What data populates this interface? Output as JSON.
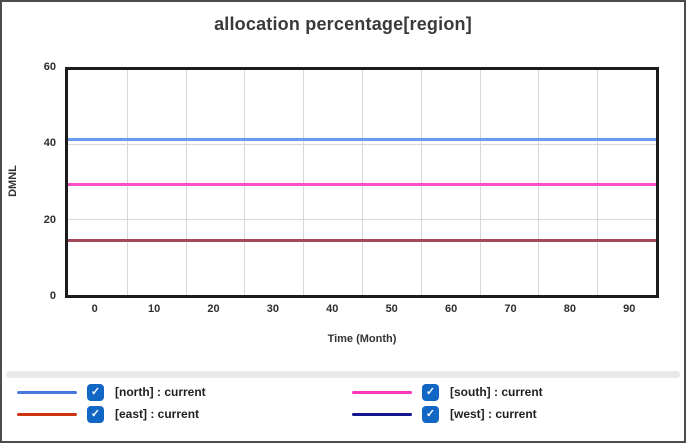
{
  "chart": {
    "title": "allocation percentage[region]",
    "y_axis_label": "DMNL",
    "x_axis_label": "Time (Month)",
    "y_ticks": [
      "60",
      "40",
      "20",
      "0"
    ],
    "x_ticks": [
      "0",
      "10",
      "20",
      "30",
      "40",
      "50",
      "60",
      "70",
      "80",
      "90"
    ]
  },
  "chart_data": {
    "type": "line",
    "title": "allocation percentage[region]",
    "xlabel": "Time (Month)",
    "ylabel": "DMNL",
    "x": [
      0,
      10,
      20,
      30,
      40,
      50,
      60,
      70,
      80,
      90
    ],
    "ylim": [
      0,
      60
    ],
    "grid": true,
    "legend_position": "bottom",
    "x_axis_style": "category-offset (labels centered between boundary gridlines)",
    "series": [
      {
        "name": "[north] : current",
        "region": "north",
        "color": "#4678dc",
        "plot_color": "#6b9bee",
        "value": 41.5,
        "values": [
          41.5,
          41.5,
          41.5,
          41.5,
          41.5,
          41.5,
          41.5,
          41.5,
          41.5,
          41.5
        ],
        "checked": true
      },
      {
        "name": "[south] : current",
        "region": "south",
        "color": "#ff36bc",
        "plot_color": "#f94fc3",
        "value": 29.5,
        "values": [
          29.5,
          29.5,
          29.5,
          29.5,
          29.5,
          29.5,
          29.5,
          29.5,
          29.5,
          29.5
        ],
        "checked": true
      },
      {
        "name": "[east] : current",
        "region": "east",
        "color": "#cc3311",
        "plot_color": "#a3495a",
        "value": 14.5,
        "values": [
          14.5,
          14.5,
          14.5,
          14.5,
          14.5,
          14.5,
          14.5,
          14.5,
          14.5,
          14.5
        ],
        "checked": true
      },
      {
        "name": "[west] : current",
        "region": "west",
        "color": "#14148c",
        "plot_color": "#14148c",
        "value": 14.5,
        "values": [
          14.5,
          14.5,
          14.5,
          14.5,
          14.5,
          14.5,
          14.5,
          14.5,
          14.5,
          14.5
        ],
        "checked": true
      }
    ]
  },
  "legend": {
    "checkbox_color": "#1266c4",
    "check_glyph": "✓"
  }
}
